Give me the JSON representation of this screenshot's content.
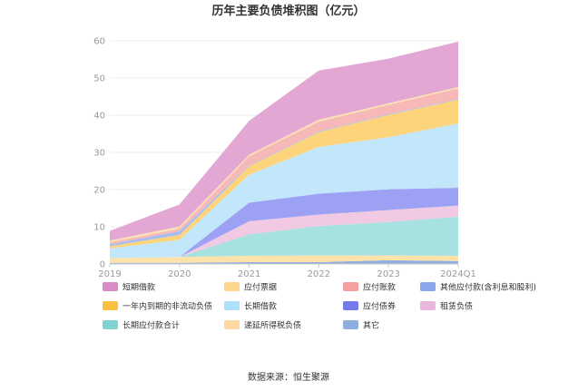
{
  "chart_data": {
    "type": "area",
    "stacked": true,
    "title": "历年主要负债堆积图（亿元）",
    "x": [
      "2019",
      "2020",
      "2021",
      "2022",
      "2023",
      "2024Q1"
    ],
    "ylim": [
      0,
      60
    ],
    "yticks": [
      0,
      10,
      20,
      30,
      40,
      50,
      60
    ],
    "grid": true,
    "legend_position": "bottom",
    "series": [
      {
        "name": "其它",
        "color": "#8eaedc",
        "values": [
          0.3,
          0.3,
          0.5,
          0.5,
          1.0,
          0.8
        ]
      },
      {
        "name": "递延所得税负债",
        "color": "#fde3aa",
        "values": [
          1.3,
          1.6,
          1.7,
          1.8,
          1.3,
          1.4
        ]
      },
      {
        "name": "长期应付款合计",
        "color": "#a8e2e0",
        "values": [
          0.0,
          0.0,
          5.8,
          7.9,
          9.0,
          10.5
        ]
      },
      {
        "name": "租赁负债",
        "color": "#f1c9e3",
        "values": [
          0.0,
          0.0,
          3.5,
          3.1,
          3.2,
          3.0
        ]
      },
      {
        "name": "应付债券",
        "color": "#9da1f3",
        "values": [
          0.0,
          0.0,
          5.0,
          5.6,
          5.6,
          4.8
        ]
      },
      {
        "name": "长期借款",
        "color": "#c2e7fb",
        "values": [
          2.6,
          4.6,
          7.5,
          12.6,
          14.0,
          17.3
        ]
      },
      {
        "name": "一年内到期的非流动负债",
        "color": "#fdd47b",
        "values": [
          0.6,
          1.3,
          2.3,
          4.0,
          6.0,
          6.4
        ]
      },
      {
        "name": "其他应付款(含利息和股利)",
        "color": "#a7bdf0",
        "values": [
          0.5,
          1.0,
          0.2,
          0.2,
          0.2,
          0.2
        ]
      },
      {
        "name": "应付账款",
        "color": "#f7b8b8",
        "values": [
          0.5,
          0.7,
          2.5,
          2.6,
          2.5,
          2.8
        ]
      },
      {
        "name": "应付票据",
        "color": "#fde0b0",
        "values": [
          0.5,
          0.6,
          0.4,
          0.5,
          0.4,
          0.4
        ]
      },
      {
        "name": "短期借款",
        "color": "#e3a7d3",
        "values": [
          2.6,
          5.9,
          9.1,
          13.2,
          12.0,
          12.2
        ]
      }
    ],
    "legend_order": [
      "短期借款",
      "应付票据",
      "应付账款",
      "其他应付款(含利息和股利)",
      "一年内到期的非流动负债",
      "长期借款",
      "应付债券",
      "租赁负债",
      "长期应付款合计",
      "递延所得税负债",
      "其它"
    ],
    "legend_colors": {
      "短期借款": "#d98bc6",
      "应付票据": "#fcd88f",
      "应付账款": "#f5a0a0",
      "其他应付款(含利息和股利)": "#8aa6ee",
      "一年内到期的非流动负债": "#fbc03d",
      "长期借款": "#ade0fa",
      "应付债券": "#7479ec",
      "租赁负债": "#e9b7dc",
      "长期应付款合计": "#7fd3d1",
      "递延所得税负债": "#fcd9a0",
      "其它": "#8eaedc"
    }
  },
  "source_text": "数据来源：恒生聚源"
}
